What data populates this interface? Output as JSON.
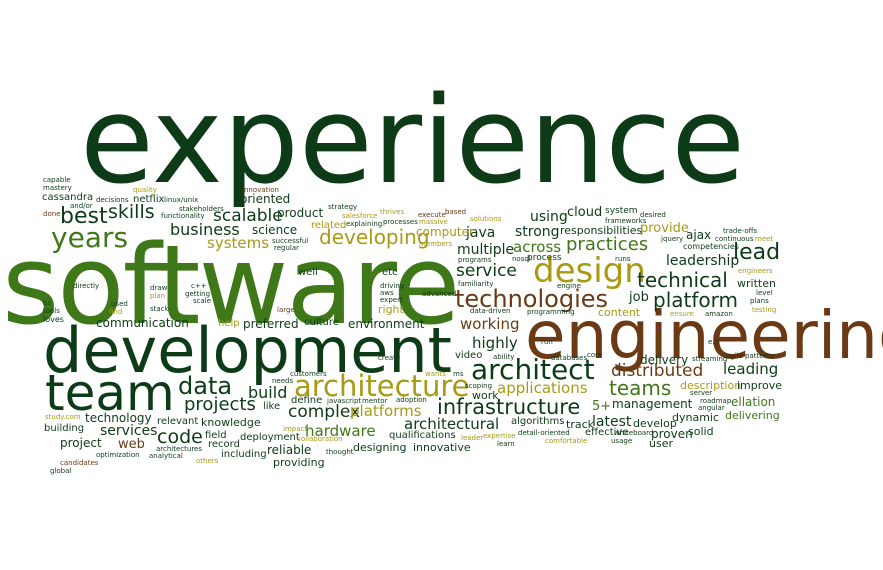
{
  "palette": {
    "dark_green": "#0e3b17",
    "green": "#3f7818",
    "olive": "#a89a14",
    "brown": "#6b3a14",
    "dark_brown": "#5a2a10"
  },
  "words": [
    {
      "text": "experience",
      "color": "#0e3b17"
    },
    {
      "text": "software",
      "color": "#3f7818"
    },
    {
      "text": "engineering",
      "color": "#6b3a14"
    },
    {
      "text": "development",
      "color": "#0e3b17"
    },
    {
      "text": "team",
      "color": "#0e3b17"
    },
    {
      "text": "architecture",
      "color": "#a89a14"
    },
    {
      "text": "design",
      "color": "#a89a14"
    },
    {
      "text": "technologies",
      "color": "#6b3a14"
    },
    {
      "text": "architect",
      "color": "#0e3b17"
    },
    {
      "text": "years",
      "color": "#3f7818"
    },
    {
      "text": "developing",
      "color": "#a89a14"
    },
    {
      "text": "infrastructure",
      "color": "#0e3b17"
    },
    {
      "text": "data",
      "color": "#0e3b17"
    },
    {
      "text": "technical",
      "color": "#0e3b17"
    },
    {
      "text": "platform",
      "color": "#0e3b17"
    },
    {
      "text": "lead",
      "color": "#0e3b17"
    },
    {
      "text": "practices",
      "color": "#3f7818"
    },
    {
      "text": "best",
      "color": "#0e3b17"
    },
    {
      "text": "skills",
      "color": "#0e3b17"
    },
    {
      "text": "service",
      "color": "#0e3b17"
    },
    {
      "text": "distributed",
      "color": "#6b3a14"
    },
    {
      "text": "teams",
      "color": "#3f7818"
    },
    {
      "text": "projects",
      "color": "#0e3b17"
    },
    {
      "text": "scalable",
      "color": "#0e3b17"
    },
    {
      "text": "business",
      "color": "#0e3b17"
    },
    {
      "text": "systems",
      "color": "#a89a14"
    },
    {
      "text": "code",
      "color": "#0e3b17"
    },
    {
      "text": "complex",
      "color": "#0e3b17"
    },
    {
      "text": "build",
      "color": "#0e3b17"
    },
    {
      "text": "platforms",
      "color": "#a89a14"
    },
    {
      "text": "hardware",
      "color": "#3f7818"
    },
    {
      "text": "architectural",
      "color": "#0e3b17"
    },
    {
      "text": "applications",
      "color": "#a89a14"
    },
    {
      "text": "working",
      "color": "#6b3a14"
    },
    {
      "text": "highly",
      "color": "#0e3b17"
    },
    {
      "text": "leading",
      "color": "#0e3b17"
    },
    {
      "text": "across",
      "color": "#3f7818"
    },
    {
      "text": "java",
      "color": "#0e3b17"
    },
    {
      "text": "strong",
      "color": "#0e3b17"
    },
    {
      "text": "multiple",
      "color": "#0e3b17"
    },
    {
      "text": "services",
      "color": "#0e3b17"
    },
    {
      "text": "leadership",
      "color": "#0e3b17"
    },
    {
      "text": "computer",
      "color": "#a89a14"
    },
    {
      "text": "using",
      "color": "#0e3b17"
    },
    {
      "text": "cloud",
      "color": "#0e3b17"
    },
    {
      "text": "provide",
      "color": "#a89a14"
    },
    {
      "text": "product",
      "color": "#0e3b17"
    },
    {
      "text": "science",
      "color": "#0e3b17"
    },
    {
      "text": "oriented",
      "color": "#0e3b17"
    },
    {
      "text": "management",
      "color": "#0e3b17"
    },
    {
      "text": "latest",
      "color": "#0e3b17"
    },
    {
      "text": "delivery",
      "color": "#0e3b17"
    },
    {
      "text": "job",
      "color": "#0e3b17"
    },
    {
      "text": "5+",
      "color": "#3f7818"
    },
    {
      "text": "ajax",
      "color": "#0e3b17"
    },
    {
      "text": "written",
      "color": "#0e3b17"
    },
    {
      "text": "responsibilities",
      "color": "#0e3b17"
    },
    {
      "text": "description",
      "color": "#a89a14"
    },
    {
      "text": "improve",
      "color": "#0e3b17"
    },
    {
      "text": "ellation",
      "color": "#3f7818"
    },
    {
      "text": "delivering",
      "color": "#3f7818"
    },
    {
      "text": "dynamic",
      "color": "#0e3b17"
    },
    {
      "text": "develop",
      "color": "#0e3b17"
    },
    {
      "text": "proven",
      "color": "#0e3b17"
    },
    {
      "text": "solid",
      "color": "#0e3b17"
    },
    {
      "text": "user",
      "color": "#0e3b17"
    },
    {
      "text": "content",
      "color": "#a89a14"
    },
    {
      "text": "process",
      "color": "#0e3b17"
    },
    {
      "text": "communication",
      "color": "#0e3b17"
    },
    {
      "text": "preferred",
      "color": "#0e3b17"
    },
    {
      "text": "culture",
      "color": "#0e3b17"
    },
    {
      "text": "environment",
      "color": "#0e3b17"
    },
    {
      "text": "right",
      "color": "#a89a14"
    },
    {
      "text": "etc",
      "color": "#0e3b17"
    },
    {
      "text": "well",
      "color": "#0e3b17"
    },
    {
      "text": "knowledge",
      "color": "#0e3b17"
    },
    {
      "text": "technology",
      "color": "#0e3b17"
    },
    {
      "text": "relevant",
      "color": "#0e3b17"
    },
    {
      "text": "project",
      "color": "#0e3b17"
    },
    {
      "text": "web",
      "color": "#6b3a14"
    },
    {
      "text": "building",
      "color": "#0e3b17"
    },
    {
      "text": "record",
      "color": "#0e3b17"
    },
    {
      "text": "field",
      "color": "#0e3b17"
    },
    {
      "text": "deployment",
      "color": "#0e3b17"
    },
    {
      "text": "reliable",
      "color": "#0e3b17"
    },
    {
      "text": "providing",
      "color": "#0e3b17"
    },
    {
      "text": "including",
      "color": "#0e3b17"
    },
    {
      "text": "designing",
      "color": "#0e3b17"
    },
    {
      "text": "innovative",
      "color": "#0e3b17"
    },
    {
      "text": "qualifications",
      "color": "#0e3b17"
    },
    {
      "text": "define",
      "color": "#0e3b17"
    },
    {
      "text": "work",
      "color": "#0e3b17"
    },
    {
      "text": "algorithms",
      "color": "#0e3b17"
    },
    {
      "text": "track",
      "color": "#0e3b17"
    },
    {
      "text": "effective",
      "color": "#0e3b17"
    },
    {
      "text": "help",
      "color": "#a89a14"
    },
    {
      "text": "like",
      "color": "#0e3b17"
    },
    {
      "text": "video",
      "color": "#0e3b17"
    },
    {
      "text": "netflix",
      "color": "#0e3b17"
    },
    {
      "text": "cassandra",
      "color": "#0e3b17"
    },
    {
      "text": "related",
      "color": "#a89a14"
    },
    {
      "text": "system",
      "color": "#0e3b17"
    },
    {
      "text": "frameworks",
      "color": "#0e3b17"
    },
    {
      "text": "competencies",
      "color": "#0e3b17"
    },
    {
      "text": "continuous",
      "color": "#0e3b17"
    },
    {
      "text": "trade-offs",
      "color": "#0e3b17"
    },
    {
      "text": "successful",
      "color": "#0e3b17"
    },
    {
      "text": "regular",
      "color": "#0e3b17"
    },
    {
      "text": "stakeholders",
      "color": "#0e3b17"
    },
    {
      "text": "functionality",
      "color": "#0e3b17"
    },
    {
      "text": "decisions",
      "color": "#0e3b17"
    },
    {
      "text": "innovation",
      "color": "#6b3a14"
    },
    {
      "text": "linux/unix",
      "color": "#0e3b17"
    },
    {
      "text": "quality",
      "color": "#a89a14"
    },
    {
      "text": "capable",
      "color": "#0e3b17"
    },
    {
      "text": "mastery",
      "color": "#0e3b17"
    },
    {
      "text": "and/or",
      "color": "#0e3b17"
    },
    {
      "text": "done",
      "color": "#6b3a14"
    },
    {
      "text": "getting",
      "color": "#0e3b17"
    },
    {
      "text": "strategy",
      "color": "#0e3b17"
    },
    {
      "text": "salesforce",
      "color": "#a89a14"
    },
    {
      "text": "explaining",
      "color": "#0e3b17"
    },
    {
      "text": "thrives",
      "color": "#a89a14"
    },
    {
      "text": "processes",
      "color": "#0e3b17"
    },
    {
      "text": "execute",
      "color": "#6b3a14"
    },
    {
      "text": "massive",
      "color": "#a89a14"
    },
    {
      "text": "based",
      "color": "#6b3a14"
    },
    {
      "text": "solutions",
      "color": "#a89a14"
    },
    {
      "text": "desired",
      "color": "#0e3b17"
    },
    {
      "text": "jquery",
      "color": "#0e3b17"
    },
    {
      "text": "meet",
      "color": "#a89a14"
    },
    {
      "text": "members",
      "color": "#a89a14"
    },
    {
      "text": "programs",
      "color": "#0e3b17"
    },
    {
      "text": "nosql",
      "color": "#0e3b17"
    },
    {
      "text": "runs",
      "color": "#0e3b17"
    },
    {
      "text": "level",
      "color": "#0e3b17"
    },
    {
      "text": "plans",
      "color": "#0e3b17"
    },
    {
      "text": "testing",
      "color": "#a89a14"
    },
    {
      "text": "engineers",
      "color": "#a89a14"
    },
    {
      "text": "directly",
      "color": "#0e3b17"
    },
    {
      "text": "draw",
      "color": "#0e3b17"
    },
    {
      "text": "c++",
      "color": "#0e3b17"
    },
    {
      "text": "plan",
      "color": "#a89a14"
    },
    {
      "text": "scale",
      "color": "#0e3b17"
    },
    {
      "text": "driving",
      "color": "#0e3b17"
    },
    {
      "text": "aws",
      "color": "#0e3b17"
    },
    {
      "text": "expert",
      "color": "#0e3b17"
    },
    {
      "text": "advanced",
      "color": "#0e3b17"
    },
    {
      "text": "familiarity",
      "color": "#0e3b17"
    },
    {
      "text": "engine",
      "color": "#0e3b17"
    },
    {
      "text": "ensure",
      "color": "#a89a14"
    },
    {
      "text": "amazon",
      "color": "#0e3b17"
    },
    {
      "text": "data-driven",
      "color": "#0e3b17"
    },
    {
      "text": "programming",
      "color": "#0e3b17"
    },
    {
      "text": "tools",
      "color": "#0e3b17"
    },
    {
      "text": "loves",
      "color": "#0e3b17"
    },
    {
      "text": "used",
      "color": "#0e3b17"
    },
    {
      "text": "find",
      "color": "#a89a14"
    },
    {
      "text": "stack",
      "color": "#0e3b17"
    },
    {
      "text": "large",
      "color": "#6b3a14"
    },
    {
      "text": "bs",
      "color": "#0e3b17"
    },
    {
      "text": "run",
      "color": "#0e3b17"
    },
    {
      "text": "create",
      "color": "#0e3b17"
    },
    {
      "text": "ability",
      "color": "#0e3b17"
    },
    {
      "text": "databases",
      "color": "#0e3b17"
    },
    {
      "text": "core",
      "color": "#0e3b17"
    },
    {
      "text": "e.g",
      "color": "#0e3b17"
    },
    {
      "text": "streaming",
      "color": "#0e3b17"
    },
    {
      "text": "agile",
      "color": "#0e3b17"
    },
    {
      "text": "patterns",
      "color": "#0e3b17"
    },
    {
      "text": "needs",
      "color": "#0e3b17"
    },
    {
      "text": "customers",
      "color": "#0e3b17"
    },
    {
      "text": "javascript",
      "color": "#0e3b17"
    },
    {
      "text": "mentor",
      "color": "#0e3b17"
    },
    {
      "text": "adoption",
      "color": "#0e3b17"
    },
    {
      "text": "wants",
      "color": "#a89a14"
    },
    {
      "text": "scoping",
      "color": "#0e3b17"
    },
    {
      "text": "ms",
      "color": "#0e3b17"
    },
    {
      "text": "server",
      "color": "#0e3b17"
    },
    {
      "text": "roadmap",
      "color": "#0e3b17"
    },
    {
      "text": "angular",
      "color": "#0e3b17"
    },
    {
      "text": "study.com",
      "color": "#a89a14"
    },
    {
      "text": "impact",
      "color": "#a89a14"
    },
    {
      "text": "collaboration",
      "color": "#a89a14"
    },
    {
      "text": "thought",
      "color": "#0e3b17"
    },
    {
      "text": "expertise",
      "color": "#a89a14"
    },
    {
      "text": "learn",
      "color": "#0e3b17"
    },
    {
      "text": "leader",
      "color": "#a89a14"
    },
    {
      "text": "detail-oriented",
      "color": "#0e3b17"
    },
    {
      "text": "comfortable",
      "color": "#a89a14"
    },
    {
      "text": "whiteboard",
      "color": "#0e3b17"
    },
    {
      "text": "usage",
      "color": "#0e3b17"
    },
    {
      "text": "optimization",
      "color": "#0e3b17"
    },
    {
      "text": "architectures",
      "color": "#0e3b17"
    },
    {
      "text": "analytical",
      "color": "#0e3b17"
    },
    {
      "text": "others",
      "color": "#a89a14"
    },
    {
      "text": "candidates",
      "color": "#6b3a14"
    },
    {
      "text": "global",
      "color": "#0e3b17"
    }
  ]
}
